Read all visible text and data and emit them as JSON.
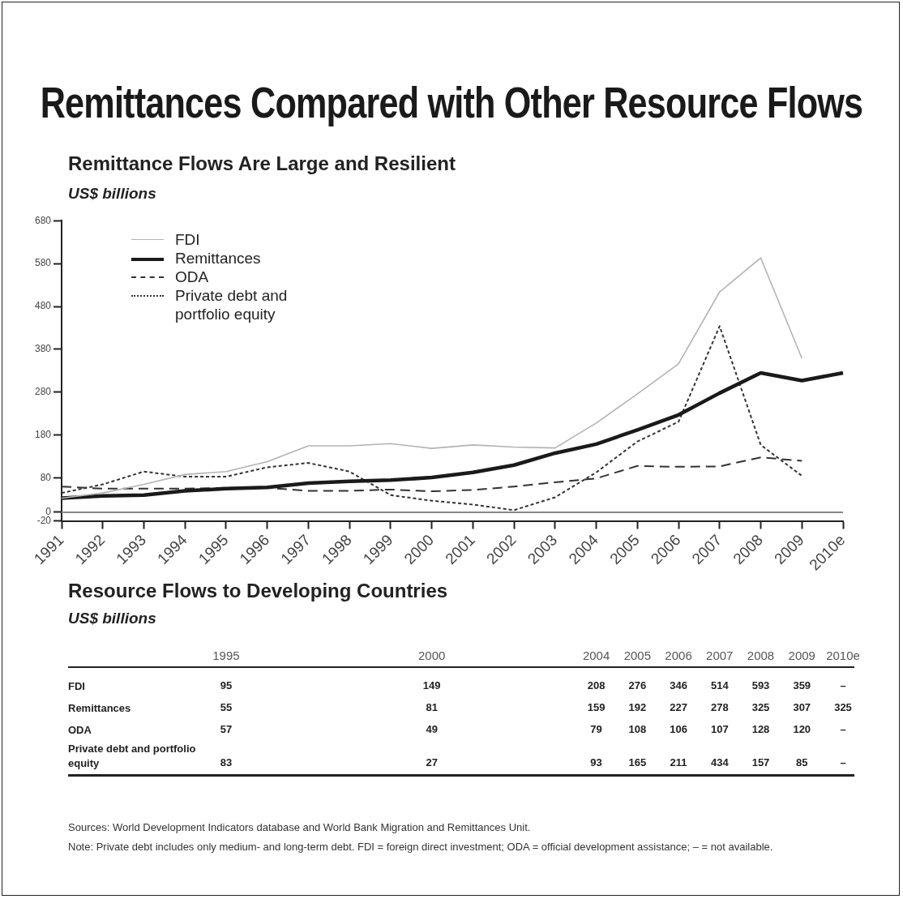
{
  "chart_data": {
    "type": "line",
    "title": "Remittances Compared with Other Resource Flows",
    "subtitle": "Remittance Flows Are Large and Resilient",
    "ylabel": "US$ billions",
    "categories": [
      "1991",
      "1992",
      "1993",
      "1994",
      "1995",
      "1996",
      "1997",
      "1998",
      "1999",
      "2000",
      "2001",
      "2002",
      "2003",
      "2004",
      "2005",
      "2006",
      "2007",
      "2008",
      "2009",
      "2010e"
    ],
    "series": [
      {
        "name": "FDI",
        "color": "#b3b3b3",
        "line_style": "solid",
        "values": [
          33,
          45,
          65,
          88,
          95,
          118,
          155,
          155,
          160,
          149,
          157,
          152,
          150,
          208,
          276,
          346,
          514,
          593,
          359,
          null
        ],
        "value_labels": [
          null,
          null,
          null,
          null,
          "95",
          null,
          null,
          null,
          null,
          "149",
          null,
          null,
          null,
          "208",
          "276",
          "346",
          "514",
          "593",
          "359",
          "–"
        ]
      },
      {
        "name": "Remittances",
        "color": "#1a1a1a",
        "line_style": "solid",
        "values": [
          33,
          38,
          40,
          50,
          55,
          58,
          68,
          72,
          75,
          81,
          93,
          110,
          138,
          159,
          192,
          227,
          278,
          325,
          307,
          325
        ],
        "value_labels": [
          null,
          null,
          null,
          null,
          "55",
          null,
          null,
          null,
          null,
          "81",
          null,
          null,
          null,
          "159",
          "192",
          "227",
          "278",
          "325",
          "307",
          "325"
        ]
      },
      {
        "name": "ODA",
        "color": "#333333",
        "line_style": "dashed",
        "values": [
          60,
          55,
          55,
          55,
          57,
          57,
          50,
          50,
          53,
          49,
          52,
          60,
          70,
          79,
          108,
          106,
          107,
          128,
          120,
          null
        ],
        "value_labels": [
          null,
          null,
          null,
          null,
          "57",
          null,
          null,
          null,
          null,
          "49",
          null,
          null,
          null,
          "79",
          "108",
          "106",
          "107",
          "128",
          "120",
          "–"
        ]
      },
      {
        "name": "Private debt and portfolio equity",
        "color": "#333333",
        "line_style": "dotted",
        "values": [
          45,
          65,
          95,
          83,
          83,
          105,
          115,
          95,
          40,
          27,
          18,
          5,
          35,
          93,
          165,
          211,
          434,
          157,
          85,
          null
        ],
        "value_labels": [
          null,
          null,
          null,
          null,
          "83",
          null,
          null,
          null,
          null,
          "27",
          null,
          null,
          null,
          "93",
          "165",
          "211",
          "434",
          "157",
          "85",
          "–"
        ]
      }
    ],
    "ylim": [
      -20,
      680
    ],
    "yticks": [
      -20,
      0,
      80,
      180,
      280,
      380,
      480,
      580,
      680
    ],
    "ref_lines": [
      {
        "axis": "y",
        "value": 0,
        "color": "#888888"
      }
    ],
    "grid": false,
    "legend": "top left",
    "marker": "none",
    "annotations": [
      "Resource Flows to Developing Countries",
      "US$ billions",
      "Sources: World Development Indicators database and World Bank Migration and Remittances Unit.",
      "Note: Private debt includes only medium- and long-term debt. FDI = foreign direct investment; ODA = official development assistance; – = not available."
    ]
  }
}
